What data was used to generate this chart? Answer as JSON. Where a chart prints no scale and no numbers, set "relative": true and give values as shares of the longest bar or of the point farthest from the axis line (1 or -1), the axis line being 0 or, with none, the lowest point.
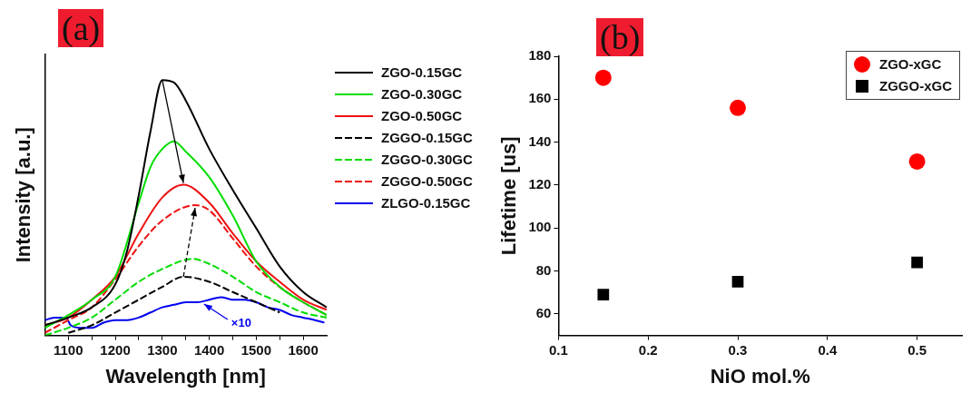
{
  "chart_data": [
    {
      "type": "line",
      "title": "(a)",
      "xlabel": "Wavelength [nm]",
      "ylabel": "Intensity [a.u.]",
      "relative": true,
      "xlim": [
        1050,
        1650
      ],
      "xticks": [
        1100,
        {
          "value": 1150,
          "label": null
        },
        1200,
        {
          "value": 1250,
          "label": null
        },
        1300,
        {
          "value": 1350,
          "label": null
        },
        1400,
        {
          "value": 1450,
          "label": null
        },
        1500,
        {
          "value": 1550,
          "label": null
        },
        1600
      ],
      "grid": false,
      "legend": "right",
      "marker": "none",
      "annotations": [
        {
          "text": "×10",
          "x": 1385,
          "y": 0.13
        }
      ],
      "series": [
        {
          "name": "ZGO-0.15GC",
          "color": "#000000",
          "line_style": "solid",
          "x": [
            1050,
            1100,
            1150,
            1200,
            1225,
            1250,
            1275,
            1300,
            1325,
            1350,
            1400,
            1450,
            1500,
            1550,
            1600,
            1650
          ],
          "values": [
            0.04,
            0.07,
            0.11,
            0.2,
            0.33,
            0.55,
            0.8,
            1.0,
            0.99,
            0.92,
            0.73,
            0.57,
            0.42,
            0.27,
            0.17,
            0.11
          ]
        },
        {
          "name": "ZGO-0.30GC",
          "color": "#00dd00",
          "line_style": "solid",
          "x": [
            1050,
            1100,
            1150,
            1200,
            1250,
            1275,
            1300,
            1325,
            1350,
            1400,
            1450,
            1500,
            1550,
            1600,
            1650
          ],
          "values": [
            0.03,
            0.08,
            0.14,
            0.23,
            0.52,
            0.66,
            0.73,
            0.76,
            0.72,
            0.62,
            0.47,
            0.29,
            0.19,
            0.13,
            0.08
          ]
        },
        {
          "name": "ZGO-0.50GC",
          "color": "#ee1111",
          "line_style": "solid",
          "x": [
            1050,
            1100,
            1150,
            1200,
            1250,
            1300,
            1345,
            1400,
            1450,
            1500,
            1550,
            1600,
            1650
          ],
          "values": [
            0.04,
            0.07,
            0.14,
            0.23,
            0.4,
            0.54,
            0.59,
            0.52,
            0.4,
            0.29,
            0.21,
            0.14,
            0.1
          ]
        },
        {
          "name": "ZGGO-0.15GC",
          "color": "#000000",
          "line_style": "dashed",
          "x": [
            1100,
            1150,
            1200,
            1250,
            1300,
            1345,
            1400,
            1450,
            1500,
            1550
          ],
          "values": [
            0.01,
            0.04,
            0.09,
            0.14,
            0.19,
            0.23,
            0.21,
            0.17,
            0.13,
            0.09
          ]
        },
        {
          "name": "ZGGO-0.30GC",
          "color": "#00dd00",
          "line_style": "dashed",
          "x": [
            1050,
            1100,
            1150,
            1200,
            1250,
            1300,
            1365,
            1400,
            1450,
            1500,
            1550,
            1600,
            1650
          ],
          "values": [
            0.0,
            0.03,
            0.07,
            0.14,
            0.21,
            0.26,
            0.3,
            0.28,
            0.23,
            0.17,
            0.13,
            0.09,
            0.07
          ]
        },
        {
          "name": "ZGGO-0.50GC",
          "color": "#ee1111",
          "line_style": "dashed",
          "x": [
            1050,
            1100,
            1150,
            1200,
            1250,
            1300,
            1370,
            1400,
            1450,
            1500,
            1550,
            1600,
            1650
          ],
          "values": [
            0.01,
            0.06,
            0.11,
            0.22,
            0.35,
            0.45,
            0.51,
            0.49,
            0.38,
            0.27,
            0.19,
            0.13,
            0.08
          ]
        },
        {
          "name": "ZLGO-0.15GC",
          "color": "#0000ee",
          "line_style": "solid",
          "x": [
            1050,
            1070,
            1095,
            1105,
            1125,
            1150,
            1175,
            1200,
            1225,
            1250,
            1275,
            1300,
            1325,
            1350,
            1375,
            1400,
            1425,
            1450,
            1475,
            1500,
            1525,
            1550,
            1575,
            1600,
            1625,
            1645
          ],
          "values": [
            0.06,
            0.07,
            0.07,
            0.04,
            0.03,
            0.03,
            0.05,
            0.06,
            0.06,
            0.07,
            0.09,
            0.11,
            0.12,
            0.13,
            0.13,
            0.14,
            0.15,
            0.14,
            0.14,
            0.13,
            0.11,
            0.1,
            0.08,
            0.07,
            0.06,
            0.05
          ]
        }
      ]
    },
    {
      "type": "scatter",
      "title": "(b)",
      "xlabel": "NiO mol.%",
      "ylabel": "Lifetime [us]",
      "xlim": [
        0.1,
        0.55
      ],
      "xticks": [
        0.1,
        0.2,
        0.3,
        0.4,
        0.5
      ],
      "ylim": [
        50,
        180
      ],
      "yticks": [
        60,
        80,
        100,
        120,
        140,
        160,
        180
      ],
      "grid": false,
      "legend": "top right",
      "series": [
        {
          "name": "ZGO-xGC",
          "color": "#ff0000",
          "marker": "circle",
          "x": [
            0.15,
            0.3,
            0.5
          ],
          "values": [
            170,
            156,
            131
          ]
        },
        {
          "name": "ZGGO-xGC",
          "color": "#000000",
          "marker": "square",
          "x": [
            0.15,
            0.3,
            0.5
          ],
          "values": [
            69,
            75,
            84
          ]
        }
      ]
    }
  ]
}
